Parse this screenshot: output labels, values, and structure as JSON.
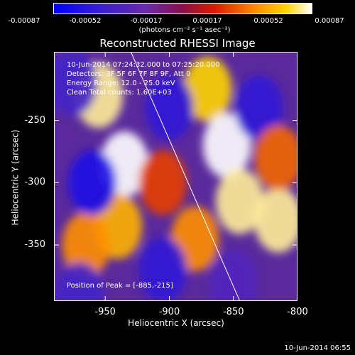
{
  "chart_data": {
    "type": "heatmap",
    "title": "Reconstructed RHESSI Image",
    "xlabel": "Heliocentric X (arcsec)",
    "ylabel": "Heliocentric Y (arcsec)",
    "xlim": [
      -990,
      -800
    ],
    "ylim": [
      -395,
      -195
    ],
    "xticks": [
      "-950",
      "-900",
      "-850",
      "-800"
    ],
    "xtick_values": [
      -950,
      -900,
      -850,
      -800
    ],
    "yticks": [
      "-250",
      "-300",
      "-350"
    ],
    "ytick_values": [
      -250,
      -300,
      -350
    ],
    "colorbar": {
      "ticks": [
        "-0.00087",
        "-0.00052",
        "-0.00017",
        "0.00017",
        "0.00052",
        "0.00087"
      ],
      "range": [
        -0.00087,
        0.00087
      ],
      "unit": "(photons cm⁻² s⁻¹ asec⁻²)"
    },
    "annotations": [
      "10-Jun-2014 07:24:32.000 to 07:25:20.000",
      "Detectors: 3F 5F 6F 7F 8F 9F, Att 0",
      "Energy Range: 12.0 - 25.0 keV",
      "Clean    Total counts: 1.60E+03"
    ],
    "peak_label": "Position of Peak = [-885,-215]",
    "limb_line": {
      "x": [
        -930,
        -845
      ],
      "y": [
        -195,
        -395
      ]
    },
    "sources": [
      {
        "x": -955,
        "y": -230,
        "value": 0.0008
      },
      {
        "x": -935,
        "y": -285,
        "value": 0.0009
      },
      {
        "x": -940,
        "y": -335,
        "value": 0.0006
      },
      {
        "x": -965,
        "y": -350,
        "value": 0.0005
      },
      {
        "x": -870,
        "y": -225,
        "value": 0.0007
      },
      {
        "x": -855,
        "y": -270,
        "value": 0.0009
      },
      {
        "x": -845,
        "y": -315,
        "value": 0.0008
      },
      {
        "x": -880,
        "y": -345,
        "value": 0.0005
      },
      {
        "x": -815,
        "y": -330,
        "value": 0.0008
      },
      {
        "x": -905,
        "y": -300,
        "value": 0.0003
      },
      {
        "x": -960,
        "y": -300,
        "value": -0.0007
      },
      {
        "x": -975,
        "y": -220,
        "value": -0.0005
      },
      {
        "x": -900,
        "y": -240,
        "value": -0.0006
      },
      {
        "x": -905,
        "y": -370,
        "value": -0.0006
      },
      {
        "x": -830,
        "y": -240,
        "value": -0.0006
      },
      {
        "x": -850,
        "y": -380,
        "value": -0.0004
      },
      {
        "x": -970,
        "y": -390,
        "value": -0.0005
      },
      {
        "x": -815,
        "y": -280,
        "value": 0.0004
      }
    ]
  },
  "footer": "10-Jun-2014 06:55"
}
